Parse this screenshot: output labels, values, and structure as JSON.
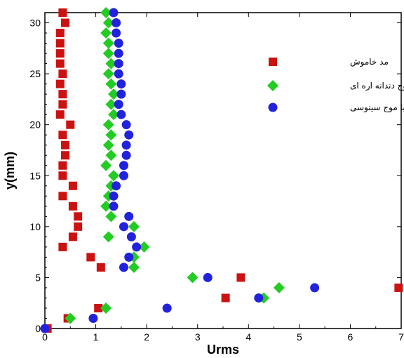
{
  "chart_data": {
    "type": "scatter",
    "xlabel": "Urms",
    "ylabel": "y(mm)",
    "xlim": [
      0,
      7
    ],
    "ylim": [
      0,
      31
    ],
    "xticks": [
      0,
      1,
      2,
      3,
      4,
      5,
      6,
      7
    ],
    "yticks": [
      0,
      5,
      10,
      15,
      20,
      25,
      30
    ],
    "grid": false,
    "legend_position": "top-right",
    "series": [
      {
        "name": "مد خاموش",
        "marker": "square",
        "color": "#cc1111",
        "points": [
          [
            0.05,
            0
          ],
          [
            0.45,
            1
          ],
          [
            1.05,
            2
          ],
          [
            3.55,
            3
          ],
          [
            3.85,
            5
          ],
          [
            6.95,
            4
          ],
          [
            1.1,
            6
          ],
          [
            0.9,
            7
          ],
          [
            0.35,
            8
          ],
          [
            0.55,
            9
          ],
          [
            0.65,
            10
          ],
          [
            0.65,
            11
          ],
          [
            0.55,
            12
          ],
          [
            0.35,
            13
          ],
          [
            0.55,
            14
          ],
          [
            0.35,
            15
          ],
          [
            0.35,
            16
          ],
          [
            0.4,
            17
          ],
          [
            0.4,
            18
          ],
          [
            0.35,
            19
          ],
          [
            0.5,
            20
          ],
          [
            0.3,
            21
          ],
          [
            0.35,
            22
          ],
          [
            0.35,
            23
          ],
          [
            0.3,
            24
          ],
          [
            0.35,
            25
          ],
          [
            0.3,
            26
          ],
          [
            0.3,
            27
          ],
          [
            0.3,
            28
          ],
          [
            0.3,
            29
          ],
          [
            0.4,
            30
          ],
          [
            0.35,
            31
          ]
        ]
      },
      {
        "name": "روشن با موج دندانه اره ای",
        "marker": "diamond",
        "color": "#22cc22",
        "points": [
          [
            0.5,
            1
          ],
          [
            1.2,
            2
          ],
          [
            4.3,
            3
          ],
          [
            4.6,
            4
          ],
          [
            2.9,
            5
          ],
          [
            1.75,
            6
          ],
          [
            1.75,
            7
          ],
          [
            1.95,
            8
          ],
          [
            1.25,
            9
          ],
          [
            1.75,
            10
          ],
          [
            1.3,
            11
          ],
          [
            1.2,
            12
          ],
          [
            1.25,
            13
          ],
          [
            1.3,
            14
          ],
          [
            1.35,
            15
          ],
          [
            1.2,
            16
          ],
          [
            1.3,
            17
          ],
          [
            1.25,
            18
          ],
          [
            1.3,
            19
          ],
          [
            1.25,
            20
          ],
          [
            1.35,
            21
          ],
          [
            1.3,
            22
          ],
          [
            1.35,
            23
          ],
          [
            1.3,
            24
          ],
          [
            1.25,
            25
          ],
          [
            1.3,
            26
          ],
          [
            1.25,
            27
          ],
          [
            1.25,
            28
          ],
          [
            1.2,
            29
          ],
          [
            1.25,
            30
          ],
          [
            1.2,
            31
          ]
        ]
      },
      {
        "name": "روشن با موج سينوسی",
        "marker": "circle",
        "color": "#2222dd",
        "points": [
          [
            0.0,
            0
          ],
          [
            0.95,
            1
          ],
          [
            2.4,
            2
          ],
          [
            4.2,
            3
          ],
          [
            5.3,
            4
          ],
          [
            3.2,
            5
          ],
          [
            1.55,
            6
          ],
          [
            1.65,
            7
          ],
          [
            1.8,
            8
          ],
          [
            1.7,
            9
          ],
          [
            1.55,
            10
          ],
          [
            1.65,
            11
          ],
          [
            1.35,
            12
          ],
          [
            1.35,
            13
          ],
          [
            1.4,
            14
          ],
          [
            1.55,
            15
          ],
          [
            1.55,
            16
          ],
          [
            1.6,
            17
          ],
          [
            1.6,
            18
          ],
          [
            1.65,
            19
          ],
          [
            1.6,
            20
          ],
          [
            1.5,
            21
          ],
          [
            1.45,
            22
          ],
          [
            1.5,
            23
          ],
          [
            1.5,
            24
          ],
          [
            1.45,
            25
          ],
          [
            1.45,
            26
          ],
          [
            1.45,
            27
          ],
          [
            1.45,
            28
          ],
          [
            1.4,
            29
          ],
          [
            1.4,
            30
          ],
          [
            1.35,
            31
          ]
        ]
      }
    ]
  }
}
